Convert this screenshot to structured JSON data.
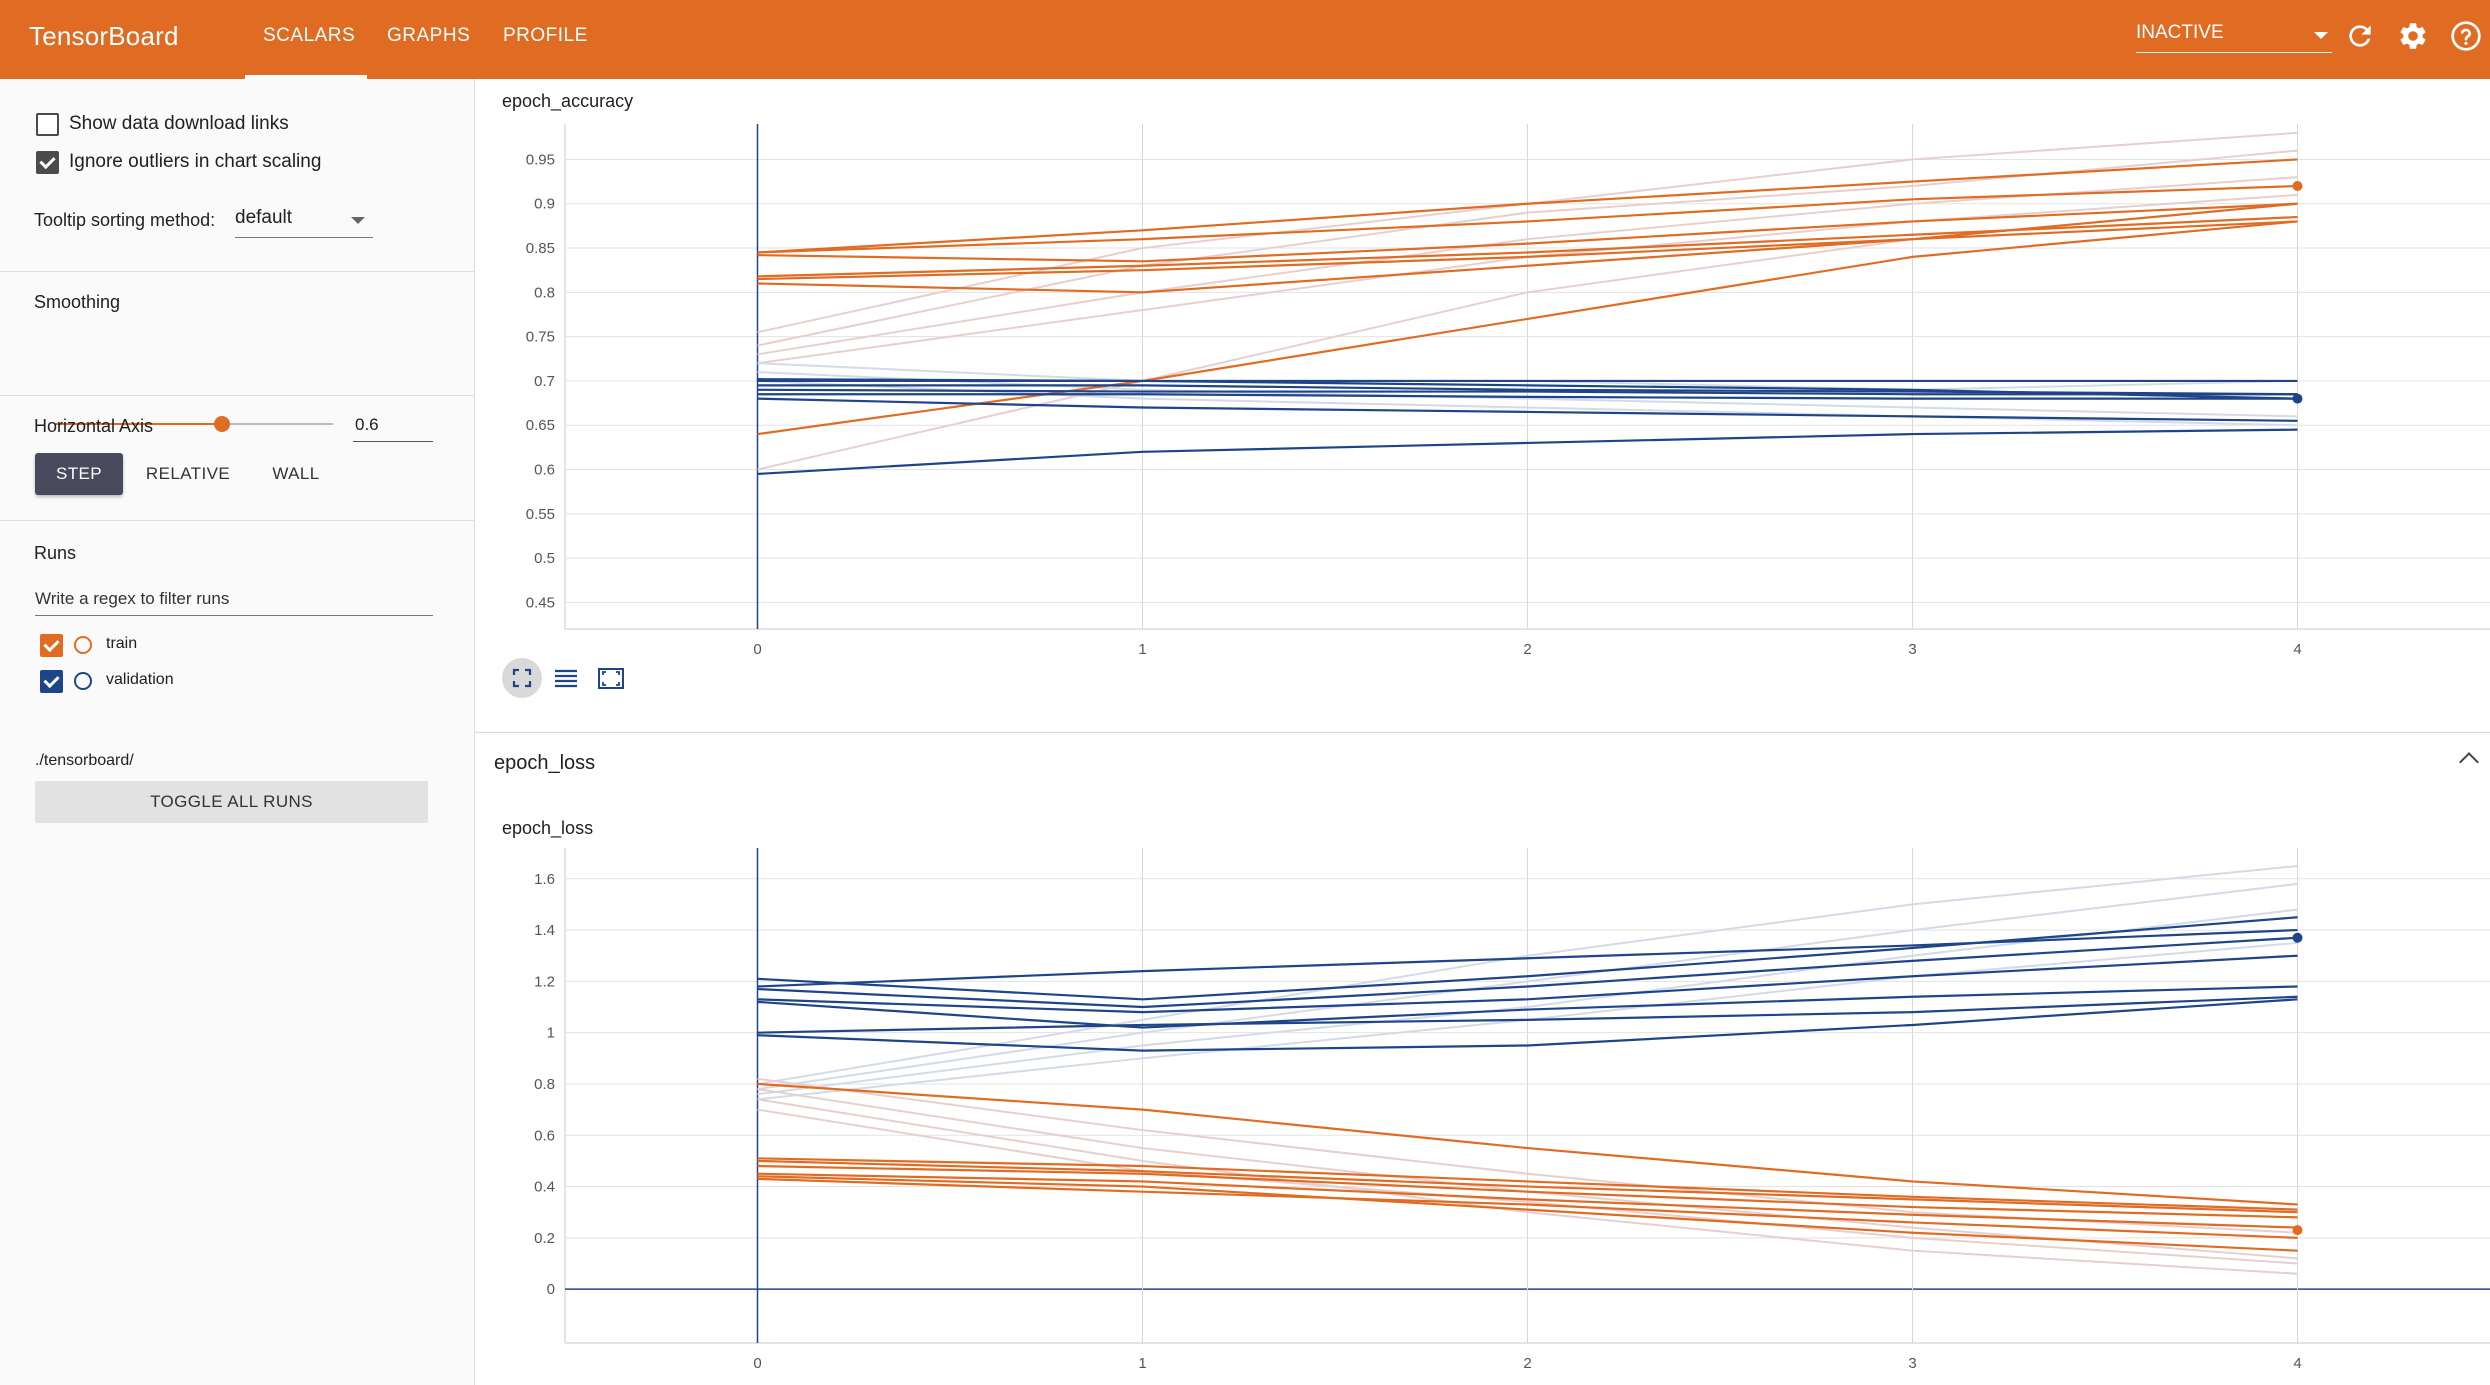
{
  "app": {
    "brand": "TensorBoard",
    "tabs": [
      {
        "label": "SCALARS"
      },
      {
        "label": "GRAPHS"
      },
      {
        "label": "PROFILE"
      }
    ],
    "status_select": "INACTIVE",
    "accent": "#e06c24"
  },
  "sidebar": {
    "show_download_links": "Show data download links",
    "ignore_outliers": "Ignore outliers in chart scaling",
    "tooltip_label": "Tooltip sorting method:",
    "tooltip_value": "default",
    "smoothing_label": "Smoothing",
    "smoothing_value": "0.6",
    "smoothing_fraction": 0.6,
    "horizontal_axis_label": "Horizontal Axis",
    "axis_options": [
      {
        "label": "STEP"
      },
      {
        "label": "RELATIVE"
      },
      {
        "label": "WALL"
      }
    ],
    "runs_label": "Runs",
    "filter_placeholder": "Write a regex to filter runs",
    "runs": [
      {
        "name": "train",
        "color": "#e06c24"
      },
      {
        "name": "validation",
        "color": "#1e4489"
      }
    ],
    "toggle_all": "TOGGLE ALL RUNS",
    "logdir": "./tensorboard/"
  },
  "main": {
    "group_title": "epoch_loss"
  },
  "chart_data": [
    {
      "type": "line",
      "title": "epoch_accuracy",
      "x": [
        0,
        1,
        2,
        3,
        4
      ],
      "xlim": [
        -0.5,
        4.5
      ],
      "ylim": [
        0.42,
        0.99
      ],
      "yticks": [
        0.45,
        0.5,
        0.55,
        0.6,
        0.65,
        0.7,
        0.75,
        0.8,
        0.85,
        0.9,
        0.95
      ],
      "grid": true,
      "series": [
        {
          "color": "#e06c24",
          "values": [
            0.845,
            0.86,
            0.88,
            0.905,
            0.92
          ]
        },
        {
          "color": "#e06c24",
          "values": [
            0.845,
            0.87,
            0.9,
            0.925,
            0.95
          ]
        },
        {
          "color": "#e06c24",
          "values": [
            0.842,
            0.835,
            0.855,
            0.88,
            0.9
          ]
        },
        {
          "color": "#e06c24",
          "values": [
            0.818,
            0.83,
            0.845,
            0.865,
            0.885
          ]
        },
        {
          "color": "#e06c24",
          "values": [
            0.815,
            0.825,
            0.84,
            0.86,
            0.88
          ]
        },
        {
          "color": "#e06c24",
          "values": [
            0.81,
            0.8,
            0.83,
            0.86,
            0.9
          ]
        },
        {
          "color": "#e06c24",
          "values": [
            0.64,
            0.7,
            0.77,
            0.84,
            0.88
          ]
        },
        {
          "color": "#1e4489",
          "values": [
            0.702,
            0.7,
            0.695,
            0.69,
            0.68
          ]
        },
        {
          "color": "#1e4489",
          "values": [
            0.7,
            0.7,
            0.7,
            0.7,
            0.7
          ]
        },
        {
          "color": "#1e4489",
          "values": [
            0.695,
            0.695,
            0.69,
            0.688,
            0.685
          ]
        },
        {
          "color": "#1e4489",
          "values": [
            0.69,
            0.688,
            0.688,
            0.685,
            0.685
          ]
        },
        {
          "color": "#1e4489",
          "values": [
            0.685,
            0.685,
            0.682,
            0.68,
            0.68
          ]
        },
        {
          "color": "#1e4489",
          "values": [
            0.68,
            0.67,
            0.665,
            0.66,
            0.655
          ]
        },
        {
          "color": "#1e4489",
          "values": [
            0.595,
            0.62,
            0.63,
            0.64,
            0.645
          ]
        }
      ],
      "faint_series": [
        {
          "color": "#e7cfcf",
          "values": [
            0.755,
            0.85,
            0.9,
            0.95,
            0.98
          ]
        },
        {
          "color": "#e7cfcf",
          "values": [
            0.74,
            0.83,
            0.89,
            0.92,
            0.96
          ]
        },
        {
          "color": "#e7cfcf",
          "values": [
            0.73,
            0.8,
            0.86,
            0.9,
            0.93
          ]
        },
        {
          "color": "#e7cfcf",
          "values": [
            0.72,
            0.78,
            0.84,
            0.88,
            0.91
          ]
        },
        {
          "color": "#e7cfcf",
          "values": [
            0.6,
            0.7,
            0.8,
            0.86,
            0.9
          ]
        },
        {
          "color": "#d3dbe6",
          "values": [
            0.72,
            0.7,
            0.7,
            0.69,
            0.7
          ]
        },
        {
          "color": "#d3dbe6",
          "values": [
            0.71,
            0.69,
            0.68,
            0.67,
            0.66
          ]
        },
        {
          "color": "#d3dbe6",
          "values": [
            0.7,
            0.68,
            0.67,
            0.66,
            0.65
          ]
        }
      ],
      "end_markers": [
        {
          "color": "#e06c24",
          "x": 4,
          "y": 0.92
        },
        {
          "color": "#1e4489",
          "x": 4,
          "y": 0.68
        }
      ]
    },
    {
      "type": "line",
      "title": "epoch_loss",
      "x": [
        0,
        1,
        2,
        3,
        4
      ],
      "xlim": [
        -0.5,
        4.5
      ],
      "ylim": [
        -0.21,
        1.72
      ],
      "yticks": [
        0,
        0.2,
        0.4,
        0.6,
        0.8,
        1,
        1.2,
        1.4,
        1.6
      ],
      "grid": true,
      "series": [
        {
          "color": "#1e4489",
          "values": [
            1.21,
            1.13,
            1.22,
            1.33,
            1.45
          ]
        },
        {
          "color": "#1e4489",
          "values": [
            1.18,
            1.24,
            1.29,
            1.34,
            1.4
          ]
        },
        {
          "color": "#1e4489",
          "values": [
            1.17,
            1.1,
            1.18,
            1.28,
            1.37
          ]
        },
        {
          "color": "#1e4489",
          "values": [
            1.13,
            1.08,
            1.13,
            1.22,
            1.3
          ]
        },
        {
          "color": "#1e4489",
          "values": [
            1.12,
            1.02,
            1.09,
            1.14,
            1.18
          ]
        },
        {
          "color": "#1e4489",
          "values": [
            1.0,
            1.03,
            1.05,
            1.08,
            1.14
          ]
        },
        {
          "color": "#1e4489",
          "values": [
            0.99,
            0.93,
            0.95,
            1.03,
            1.13
          ]
        },
        {
          "color": "#e06c24",
          "values": [
            0.8,
            0.7,
            0.55,
            0.42,
            0.33
          ]
        },
        {
          "color": "#e06c24",
          "values": [
            0.51,
            0.48,
            0.42,
            0.36,
            0.31
          ]
        },
        {
          "color": "#e06c24",
          "values": [
            0.5,
            0.46,
            0.4,
            0.35,
            0.3
          ]
        },
        {
          "color": "#e06c24",
          "values": [
            0.48,
            0.45,
            0.38,
            0.32,
            0.28
          ]
        },
        {
          "color": "#e06c24",
          "values": [
            0.45,
            0.42,
            0.35,
            0.29,
            0.24
          ]
        },
        {
          "color": "#e06c24",
          "values": [
            0.44,
            0.4,
            0.31,
            0.22,
            0.15
          ]
        },
        {
          "color": "#e06c24",
          "values": [
            0.43,
            0.38,
            0.33,
            0.26,
            0.2
          ]
        }
      ],
      "faint_series": [
        {
          "color": "#d3dbe6",
          "values": [
            0.8,
            1.05,
            1.3,
            1.5,
            1.65
          ]
        },
        {
          "color": "#d3dbe6",
          "values": [
            0.78,
            1.0,
            1.2,
            1.4,
            1.58
          ]
        },
        {
          "color": "#d3dbe6",
          "values": [
            0.76,
            0.95,
            1.1,
            1.3,
            1.48
          ]
        },
        {
          "color": "#d3dbe6",
          "values": [
            0.74,
            0.9,
            1.05,
            1.22,
            1.35
          ]
        },
        {
          "color": "#e7cfcf",
          "values": [
            0.82,
            0.62,
            0.45,
            0.3,
            0.22
          ]
        },
        {
          "color": "#e7cfcf",
          "values": [
            0.78,
            0.55,
            0.38,
            0.24,
            0.12
          ]
        },
        {
          "color": "#e7cfcf",
          "values": [
            0.74,
            0.5,
            0.3,
            0.15,
            0.06
          ]
        },
        {
          "color": "#e7cfcf",
          "values": [
            0.7,
            0.46,
            0.34,
            0.2,
            0.1
          ]
        }
      ],
      "end_markers": [
        {
          "color": "#1e4489",
          "x": 4,
          "y": 1.37
        },
        {
          "color": "#e06c24",
          "x": 4,
          "y": 0.23
        }
      ]
    }
  ]
}
